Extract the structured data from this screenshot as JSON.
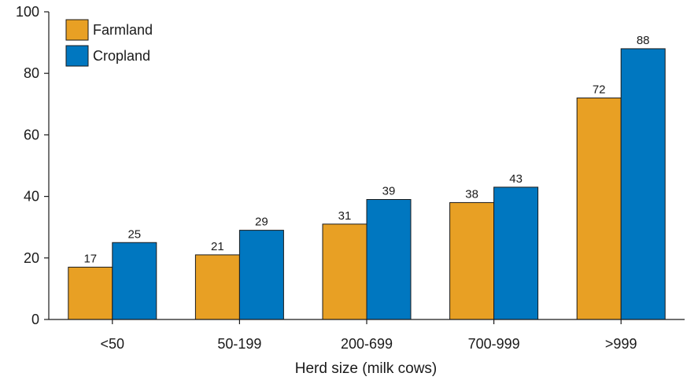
{
  "chart_data": {
    "type": "bar",
    "categories": [
      "<50",
      "50-199",
      "200-699",
      "700-999",
      ">999"
    ],
    "series": [
      {
        "name": "Farmland",
        "color": "#E8A024",
        "values": [
          17,
          21,
          31,
          38,
          72
        ]
      },
      {
        "name": "Cropland",
        "color": "#0077C0",
        "values": [
          25,
          29,
          39,
          43,
          88
        ]
      }
    ],
    "title": "",
    "xlabel": "Herd size (milk cows)",
    "ylabel": "",
    "ylim": [
      0,
      100
    ],
    "yticks": [
      0,
      20,
      40,
      60,
      80,
      100
    ],
    "grid": false,
    "legend": "top-left",
    "data_labels": true
  }
}
